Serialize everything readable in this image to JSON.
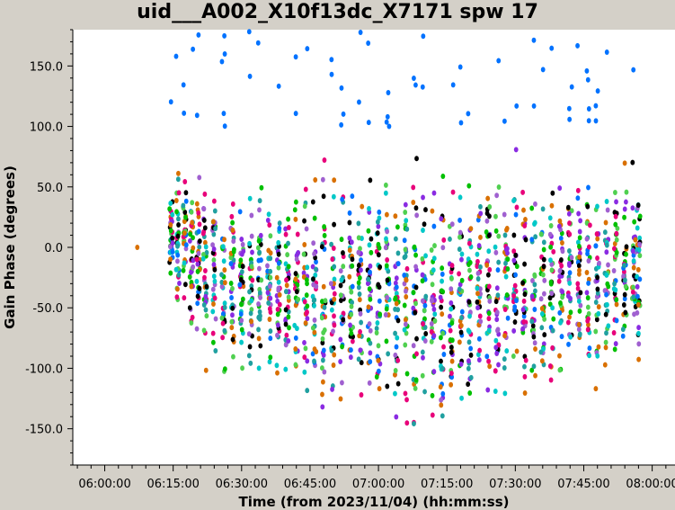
{
  "chart_data": {
    "type": "scatter",
    "title": "uid___A002_X10f13dc_X7171 spw 17",
    "xlabel": "Time (from 2023/11/04) (hh:mm:ss)",
    "ylabel": "Gain Phase (degrees)",
    "xlim": [
      "05:53:00",
      "08:05:00"
    ],
    "ylim": [
      -180,
      180
    ],
    "x_ticks": [
      "06:00:00",
      "06:15:00",
      "06:30:00",
      "06:45:00",
      "07:00:00",
      "07:15:00",
      "07:30:00",
      "07:45:00",
      "08:00:00"
    ],
    "y_ticks": [
      -150.0,
      -100.0,
      -50.0,
      0.0,
      50.0,
      100.0,
      150.0
    ],
    "y_tick_labels": [
      "-150.0",
      "-100.0",
      "-50.0",
      "0.0",
      "50.0",
      "100.0",
      "150.0"
    ],
    "grid": false,
    "legend": "none",
    "series_colors": [
      "#000000",
      "#e8007a",
      "#00c000",
      "#0072ff",
      "#d97000",
      "#8a2be2",
      "#00c8c8",
      "#a060d0",
      "#50d050",
      "#20a0a0"
    ],
    "scan_times": [
      "06:07:00",
      "06:14:30",
      "06:16:00",
      "06:17:30",
      "06:19:00",
      "06:20:30",
      "06:22:00",
      "06:24:00",
      "06:26:00",
      "06:28:00",
      "06:30:00",
      "06:32:00",
      "06:34:00",
      "06:36:00",
      "06:38:00",
      "06:40:00",
      "06:42:00",
      "06:44:00",
      "06:46:00",
      "06:48:00",
      "06:50:00",
      "06:52:00",
      "06:54:00",
      "06:56:00",
      "06:58:00",
      "07:00:00",
      "07:02:00",
      "07:04:00",
      "07:06:00",
      "07:08:00",
      "07:10:00",
      "07:12:00",
      "07:14:00",
      "07:16:00",
      "07:18:00",
      "07:20:00",
      "07:22:00",
      "07:24:00",
      "07:26:00",
      "07:28:00",
      "07:30:00",
      "07:32:00",
      "07:34:00",
      "07:36:00",
      "07:38:00",
      "07:40:00",
      "07:42:00",
      "07:44:00",
      "07:46:00",
      "07:48:00",
      "07:50:00",
      "07:52:00",
      "07:54:00",
      "07:56:00",
      "07:57:00"
    ],
    "points_per_scan_mean_deg": [
      0,
      10,
      5,
      0,
      -5,
      -10,
      -15,
      -20,
      -25,
      -28,
      -30,
      -32,
      -33,
      -34,
      -35,
      -35,
      -35,
      -36,
      -37,
      -38,
      -38,
      -39,
      -40,
      -40,
      -41,
      -42,
      -42,
      -43,
      -44,
      -44,
      -45,
      -45,
      -45,
      -45,
      -44,
      -44,
      -43,
      -42,
      -41,
      -40,
      -38,
      -37,
      -36,
      -35,
      -34,
      -33,
      -32,
      -30,
      -28,
      -26,
      -24,
      -22,
      -20,
      -18,
      -16
    ],
    "points_per_scan_spread_deg": [
      0,
      40,
      45,
      45,
      50,
      55,
      60,
      60,
      62,
      65,
      65,
      65,
      68,
      70,
      70,
      72,
      72,
      74,
      75,
      75,
      76,
      78,
      78,
      80,
      80,
      80,
      82,
      82,
      84,
      85,
      85,
      85,
      86,
      86,
      86,
      86,
      85,
      85,
      85,
      84,
      84,
      82,
      82,
      80,
      80,
      78,
      78,
      76,
      76,
      74,
      74,
      72,
      72,
      70,
      70
    ]
  }
}
